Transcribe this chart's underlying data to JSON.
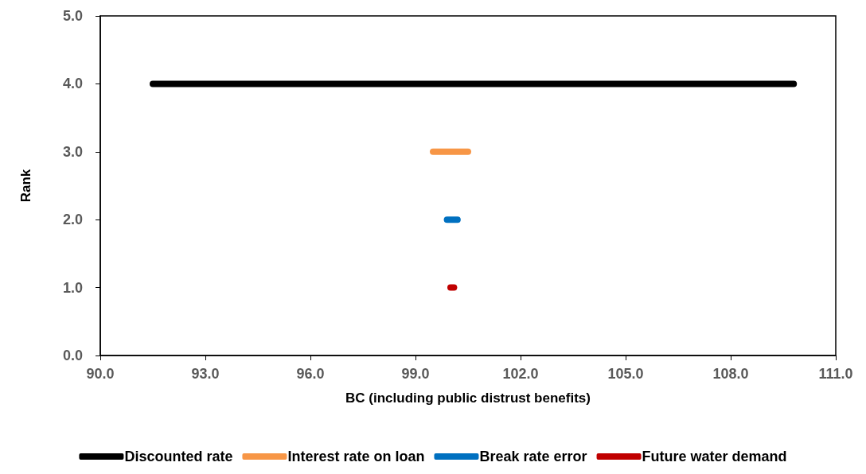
{
  "chart_data": {
    "type": "line",
    "xlabel": "BC (including public distrust benefits)",
    "ylabel": "Rank",
    "series": [
      {
        "name": "Discounted rate",
        "color": "#000000",
        "x": [
          91.5,
          109.8
        ],
        "values": [
          4,
          4
        ]
      },
      {
        "name": "Interest rate on loan",
        "color": "#f79646",
        "x": [
          99.5,
          100.5
        ],
        "values": [
          3,
          3
        ]
      },
      {
        "name": "Break rate error",
        "color": "#0070c0",
        "x": [
          99.9,
          100.2
        ],
        "values": [
          2,
          2
        ]
      },
      {
        "name": "Future water demand",
        "color": "#c00000",
        "x": [
          100.0,
          100.1
        ],
        "values": [
          1,
          1
        ]
      }
    ],
    "xlim": [
      90,
      111
    ],
    "xticks": [
      {
        "value": 90,
        "label": "90.0"
      },
      {
        "value": 93,
        "label": "93.0"
      },
      {
        "value": 96,
        "label": "96.0"
      },
      {
        "value": 99,
        "label": "99.0"
      },
      {
        "value": 102,
        "label": "102.0"
      },
      {
        "value": 105,
        "label": "105.0"
      },
      {
        "value": 108,
        "label": "108.0"
      },
      {
        "value": 111,
        "label": "111.0"
      }
    ],
    "ylim": [
      0,
      5
    ],
    "yticks": [
      {
        "value": 0,
        "label": "0.0"
      },
      {
        "value": 1,
        "label": "1.0"
      },
      {
        "value": 2,
        "label": "2.0"
      },
      {
        "value": 3,
        "label": "3.0"
      },
      {
        "value": 4,
        "label": "4.0"
      },
      {
        "value": 5,
        "label": "5.0"
      }
    ],
    "grid": false,
    "legend": "bottom",
    "line_style": "solid"
  }
}
